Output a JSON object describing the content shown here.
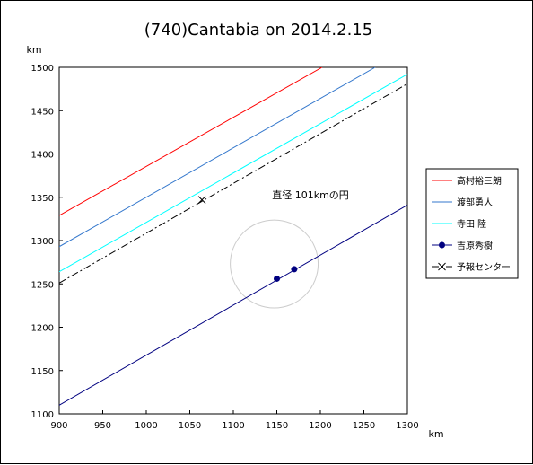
{
  "chart_data": {
    "type": "line",
    "title": "(740)Cantabia on 2014.2.15",
    "xlabel": "km",
    "ylabel": "km",
    "xlim": [
      900,
      1300
    ],
    "ylim": [
      1100,
      1500
    ],
    "xticks": [
      "900",
      "950",
      "1000",
      "1050",
      "1100",
      "1150",
      "1200",
      "1250",
      "1300"
    ],
    "yticks": [
      "1100",
      "1150",
      "1200",
      "1250",
      "1300",
      "1350",
      "1400",
      "1450",
      "1500"
    ],
    "grid": false,
    "legend_position": "right",
    "annotation": "直径 101kmの円",
    "circle": {
      "center": [
        1147,
        1273
      ],
      "diameter": 101,
      "color": "#cccccc"
    },
    "series": [
      {
        "name": "高村裕三朗",
        "color": "#ff0000",
        "style": "solid",
        "points": [
          [
            900,
            1329
          ],
          [
            1202,
            1500
          ]
        ]
      },
      {
        "name": "渡部勇人",
        "color": "#3377cc",
        "style": "solid",
        "points": [
          [
            900,
            1293
          ],
          [
            1263,
            1500
          ]
        ]
      },
      {
        "name": "寺田 陸",
        "color": "#00ffff",
        "style": "solid",
        "points": [
          [
            900,
            1264
          ],
          [
            1300,
            1492
          ]
        ]
      },
      {
        "name": "吉原秀樹",
        "color": "#000080",
        "style": "solid",
        "marker": "dot",
        "points": [
          [
            900,
            1110
          ],
          [
            1300,
            1341
          ]
        ],
        "markers": [
          [
            1150,
            1256
          ],
          [
            1170,
            1267
          ]
        ]
      },
      {
        "name": "予報センター",
        "color": "#000000",
        "style": "dashdot",
        "marker": "x",
        "points": [
          [
            900,
            1251
          ],
          [
            1300,
            1481
          ]
        ],
        "markers": [
          [
            1064,
            1347
          ]
        ]
      }
    ]
  }
}
